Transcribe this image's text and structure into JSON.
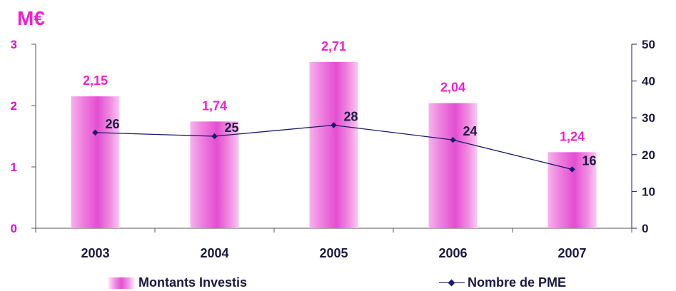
{
  "chart_data": {
    "type": "bar",
    "categories": [
      "2003",
      "2004",
      "2005",
      "2006",
      "2007"
    ],
    "series": [
      {
        "name": "Montants Investis",
        "type": "bar",
        "axis": "left",
        "values": [
          2.15,
          1.74,
          2.71,
          2.04,
          1.24
        ],
        "data_labels": [
          "2,15",
          "1,74",
          "2,71",
          "2,04",
          "1,24"
        ]
      },
      {
        "name": "Nombre de PME",
        "type": "line",
        "axis": "right",
        "values": [
          26,
          25,
          28,
          24,
          16
        ],
        "data_labels": [
          "26",
          "25",
          "28",
          "24",
          "16"
        ]
      }
    ],
    "y_left": {
      "label": "M€",
      "min": 0,
      "max": 3,
      "ticks": [
        "0",
        "1",
        "2",
        "3"
      ]
    },
    "y_right": {
      "min": 0,
      "max": 50,
      "ticks": [
        "0",
        "10",
        "20",
        "30",
        "40",
        "50"
      ]
    },
    "grid": false,
    "legend": "bottom",
    "colors": {
      "bar": "#e34ed1",
      "bar_label": "#ee22cc",
      "line": "#1b1b6b",
      "axis_text": "#1a1a40",
      "left_axis_text": "#e010c8"
    }
  }
}
